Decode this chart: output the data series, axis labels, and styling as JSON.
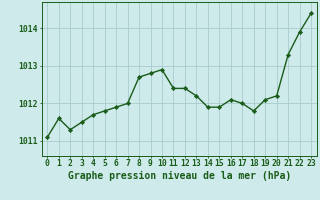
{
  "x": [
    0,
    1,
    2,
    3,
    4,
    5,
    6,
    7,
    8,
    9,
    10,
    11,
    12,
    13,
    14,
    15,
    16,
    17,
    18,
    19,
    20,
    21,
    22,
    23
  ],
  "y": [
    1011.1,
    1011.6,
    1011.3,
    1011.5,
    1011.7,
    1011.8,
    1011.9,
    1012.0,
    1012.7,
    1012.8,
    1012.9,
    1012.4,
    1012.4,
    1012.2,
    1011.9,
    1011.9,
    1012.1,
    1012.0,
    1011.8,
    1012.1,
    1012.2,
    1013.3,
    1013.9,
    1014.4
  ],
  "line_color": "#1a5c1a",
  "marker": "D",
  "marker_size": 2.2,
  "bg_color": "#ceeaea",
  "grid_color": "#a8cccc",
  "ylabel_ticks": [
    1011,
    1012,
    1013,
    1014
  ],
  "xlim": [
    -0.5,
    23.5
  ],
  "ylim": [
    1010.6,
    1014.7
  ],
  "xlabel": "Graphe pression niveau de la mer (hPa)",
  "xlabel_fontsize": 7,
  "tick_fontsize": 5.8,
  "line_width": 1.0
}
